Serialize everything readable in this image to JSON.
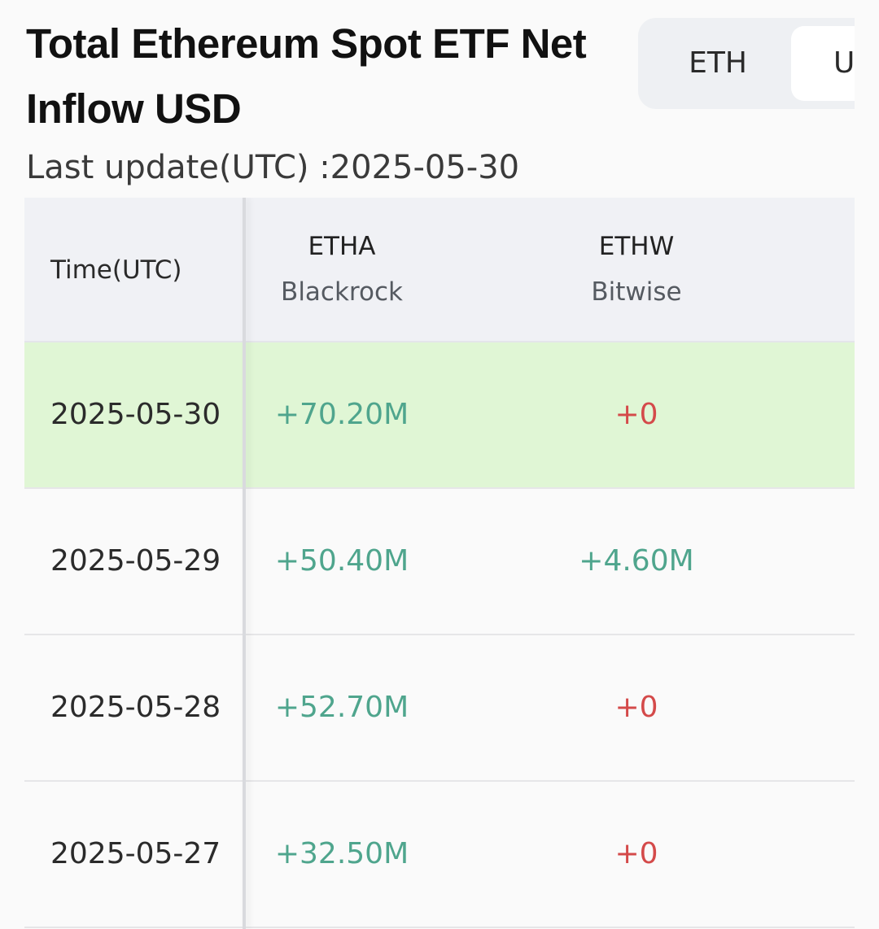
{
  "header": {
    "title": "Total Ethereum Spot ETF Net Inflow USD",
    "last_update_label": "Last update(UTC) :2025-05-30"
  },
  "unit_toggle": {
    "options": [
      "ETH",
      "U"
    ],
    "selected": "U"
  },
  "table": {
    "columns": [
      {
        "ticker": "Time(UTC)",
        "issuer": ""
      },
      {
        "ticker": "ETHA",
        "issuer": "Blackrock"
      },
      {
        "ticker": "ETHW",
        "issuer": "Bitwise"
      }
    ],
    "rows": [
      {
        "date": "2025-05-30",
        "etha": "+70.20M",
        "ethw": "+0",
        "highlight": true
      },
      {
        "date": "2025-05-29",
        "etha": "+50.40M",
        "ethw": "+4.60M",
        "highlight": false
      },
      {
        "date": "2025-05-28",
        "etha": "+52.70M",
        "ethw": "+0",
        "highlight": false
      },
      {
        "date": "2025-05-27",
        "etha": "+32.50M",
        "ethw": "+0",
        "highlight": false
      }
    ]
  },
  "colors": {
    "positive": "#4fa58d",
    "zero": "#d44a4a",
    "highlight_row": "#e0f6d5"
  }
}
